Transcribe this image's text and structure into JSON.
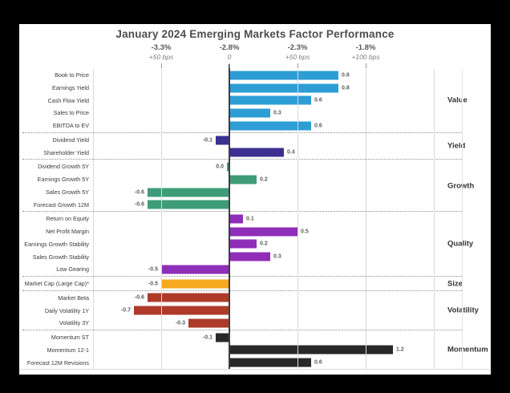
{
  "title": "January 2024 Emerging Markets Factor Performance",
  "axis_ticks": [
    {
      "percent": "-3.3%",
      "bps": "+50 bps"
    },
    {
      "percent": "-2.8%",
      "bps": "0"
    },
    {
      "percent": "-2.3%",
      "bps": "+50 bps"
    },
    {
      "percent": "-1.8%",
      "bps": "+100 bps"
    }
  ],
  "colors": {
    "background": "#000000",
    "chart_background": "#ffffff",
    "value": "#2D9DD6",
    "yield": "#3B2F91",
    "growth": "#3E9C79",
    "quality": "#8F2EB8",
    "size": "#F6A81E",
    "volatility": "#AE3B2A",
    "momentum": "#282828"
  },
  "chart_data": {
    "type": "bar",
    "orientation": "horizontal",
    "title": "January 2024 Emerging Markets Factor Performance",
    "x_axis": {
      "top_row_percent": [
        "-3.3%",
        "-2.8%",
        "-2.3%",
        "-1.8%"
      ],
      "bottom_row_bps": [
        "+50 bps",
        "0",
        "+50 bps",
        "+100 bps"
      ],
      "tick_step": 0.5,
      "xlim": [
        -1.0,
        1.5
      ],
      "grid": true
    },
    "legend_position": "right-of-plot-group-labels",
    "groups": [
      {
        "name": "Value",
        "color": "#2D9DD6",
        "items": [
          {
            "label": "Book to Price",
            "value": 0.8
          },
          {
            "label": "Earnings Yield",
            "value": 0.8
          },
          {
            "label": "Cash Flow Yield",
            "value": 0.6
          },
          {
            "label": "Sales to Price",
            "value": 0.3
          },
          {
            "label": "EBITDA to EV",
            "value": 0.6
          }
        ]
      },
      {
        "name": "Yield",
        "color": "#3B2F91",
        "items": [
          {
            "label": "Dividend Yield",
            "value": -0.1
          },
          {
            "label": "Shareholder Yield",
            "value": 0.4
          }
        ]
      },
      {
        "name": "Growth",
        "color": "#3E9C79",
        "items": [
          {
            "label": "Dividend Growth 5Y",
            "value": 0.0
          },
          {
            "label": "Earnings Growth 5Y",
            "value": 0.2
          },
          {
            "label": "Sales Growth 5Y",
            "value": -0.6
          },
          {
            "label": "Forecast Growth 12M",
            "value": -0.6
          }
        ]
      },
      {
        "name": "Quality",
        "color": "#8F2EB8",
        "items": [
          {
            "label": "Return on Equity",
            "value": 0.1
          },
          {
            "label": "Net Profit Margin",
            "value": 0.5
          },
          {
            "label": "Earnings Growth Stability",
            "value": 0.2
          },
          {
            "label": "Sales Growth Stability",
            "value": 0.3
          },
          {
            "label": "Low Gearing",
            "value": -0.5
          }
        ]
      },
      {
        "name": "Size",
        "color": "#F6A81E",
        "items": [
          {
            "label": "Market Cap (Large Cap)*",
            "value": -0.5
          }
        ]
      },
      {
        "name": "Volatility",
        "color": "#AE3B2A",
        "items": [
          {
            "label": "Market Beta",
            "value": -0.6
          },
          {
            "label": "Daily Volatility 1Y",
            "value": -0.7
          },
          {
            "label": "Volatility 3Y",
            "value": -0.3
          }
        ]
      },
      {
        "name": "Momentum",
        "color": "#282828",
        "items": [
          {
            "label": "Momentum ST",
            "value": -0.1
          },
          {
            "label": "Momentum 12-1",
            "value": 1.2
          },
          {
            "label": "Forecast 12M Revisions",
            "value": 0.6
          }
        ]
      }
    ]
  }
}
